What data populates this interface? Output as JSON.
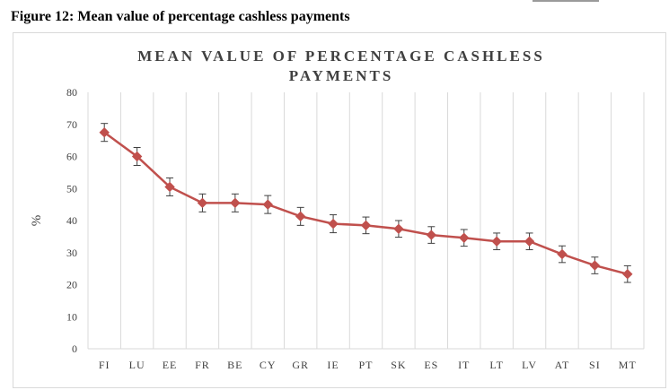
{
  "figure_caption": "Figure 12: Mean value of percentage cashless payments",
  "chart_data": {
    "type": "line",
    "title_lines": [
      "MEAN VALUE OF PERCENTAGE CASHLESS",
      "PAYMENTS"
    ],
    "ylabel": "%",
    "xlabel": "",
    "ylim": [
      0,
      80
    ],
    "yticks": [
      0,
      10,
      20,
      30,
      40,
      50,
      60,
      70,
      80
    ],
    "grid": "vertical",
    "categories": [
      "FI",
      "LU",
      "EE",
      "FR",
      "BE",
      "CY",
      "GR",
      "IE",
      "PT",
      "SK",
      "ES",
      "IT",
      "LT",
      "LV",
      "AT",
      "SI",
      "MT"
    ],
    "series": [
      {
        "values": [
          67.5,
          60.0,
          50.5,
          45.5,
          45.5,
          45.0,
          41.3,
          39.0,
          38.5,
          37.4,
          35.5,
          34.6,
          33.5,
          33.5,
          29.5,
          26.0,
          23.3
        ],
        "error_plus_minus": [
          2.8,
          2.8,
          2.8,
          2.8,
          2.8,
          2.8,
          2.8,
          2.8,
          2.6,
          2.6,
          2.6,
          2.6,
          2.6,
          2.6,
          2.6,
          2.6,
          2.6
        ],
        "color": "#c0504d"
      }
    ]
  },
  "colors": {
    "series": "#c0504d",
    "grid": "#d9d9d9",
    "error_bar": "#404040"
  }
}
